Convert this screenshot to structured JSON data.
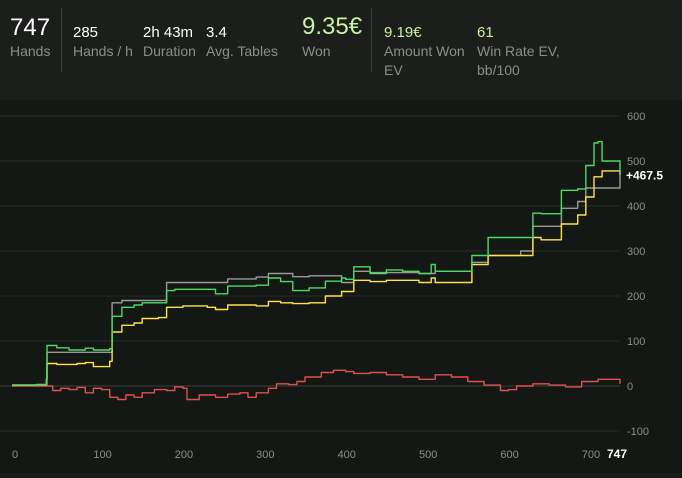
{
  "stats": {
    "hands": {
      "value": "747",
      "label": "Hands"
    },
    "hands_per_hour": {
      "value": "285",
      "label": "Hands / h"
    },
    "duration": {
      "value": "2h 43m",
      "label": "Duration"
    },
    "avg_tables": {
      "value": "3.4",
      "label": "Avg. Tables"
    },
    "won": {
      "value": "9.35€",
      "label": "Won"
    },
    "amount_won_ev": {
      "value": "9.19€",
      "label_line1": "Amount Won",
      "label_line2": "EV"
    },
    "win_rate_ev": {
      "value": "61",
      "label_line1": "Win Rate EV,",
      "label_line2": "bb/100"
    }
  },
  "colors": {
    "accent_green": "#c8f2a0",
    "series_green": "#4cd964",
    "series_yellow": "#ffe14d",
    "series_gray": "#9a9a9a",
    "series_red": "#e05050"
  },
  "chart_data": {
    "type": "line",
    "xlim": [
      0,
      747
    ],
    "ylim": [
      -100,
      600
    ],
    "x_ticks": [
      "0",
      "100",
      "200",
      "300",
      "400",
      "500",
      "600",
      "700"
    ],
    "y_ticks": [
      "600",
      "500",
      "400",
      "300",
      "200",
      "100",
      "0",
      "-100"
    ],
    "x_end_label": "747",
    "end_value_label": "+467.5",
    "grid": true,
    "series": [
      {
        "color_key": "series_green",
        "points": [
          [
            0,
            2
          ],
          [
            30,
            3
          ],
          [
            42,
            15
          ],
          [
            43,
            90
          ],
          [
            55,
            85
          ],
          [
            70,
            80
          ],
          [
            90,
            84
          ],
          [
            100,
            80
          ],
          [
            120,
            83
          ],
          [
            123,
            155
          ],
          [
            135,
            175
          ],
          [
            150,
            180
          ],
          [
            160,
            185
          ],
          [
            180,
            185
          ],
          [
            190,
            212
          ],
          [
            200,
            215
          ],
          [
            240,
            215
          ],
          [
            250,
            205
          ],
          [
            265,
            222
          ],
          [
            300,
            224
          ],
          [
            315,
            240
          ],
          [
            330,
            232
          ],
          [
            345,
            212
          ],
          [
            365,
            218
          ],
          [
            385,
            233
          ],
          [
            405,
            240
          ],
          [
            410,
            237
          ],
          [
            420,
            265
          ],
          [
            440,
            250
          ],
          [
            460,
            258
          ],
          [
            480,
            255
          ],
          [
            500,
            250
          ],
          [
            515,
            270
          ],
          [
            520,
            255
          ],
          [
            565,
            290
          ],
          [
            585,
            330
          ],
          [
            625,
            330
          ],
          [
            640,
            384
          ],
          [
            650,
            383
          ],
          [
            675,
            410
          ],
          [
            675,
            435
          ],
          [
            695,
            438
          ],
          [
            705,
            490
          ],
          [
            715,
            540
          ],
          [
            720,
            543
          ],
          [
            725,
            500
          ],
          [
            747,
            470
          ]
        ]
      },
      {
        "color_key": "series_yellow",
        "points": [
          [
            0,
            2
          ],
          [
            30,
            3
          ],
          [
            42,
            15
          ],
          [
            43,
            50
          ],
          [
            55,
            48
          ],
          [
            80,
            50
          ],
          [
            90,
            52
          ],
          [
            100,
            43
          ],
          [
            120,
            55
          ],
          [
            123,
            120
          ],
          [
            135,
            135
          ],
          [
            150,
            140
          ],
          [
            160,
            150
          ],
          [
            180,
            152
          ],
          [
            190,
            175
          ],
          [
            210,
            178
          ],
          [
            240,
            175
          ],
          [
            250,
            170
          ],
          [
            265,
            180
          ],
          [
            300,
            178
          ],
          [
            315,
            188
          ],
          [
            330,
            185
          ],
          [
            345,
            183
          ],
          [
            365,
            185
          ],
          [
            385,
            200
          ],
          [
            405,
            210
          ],
          [
            420,
            235
          ],
          [
            440,
            232
          ],
          [
            460,
            235
          ],
          [
            480,
            235
          ],
          [
            500,
            230
          ],
          [
            515,
            240
          ],
          [
            520,
            230
          ],
          [
            565,
            270
          ],
          [
            585,
            290
          ],
          [
            625,
            290
          ],
          [
            640,
            330
          ],
          [
            650,
            325
          ],
          [
            675,
            360
          ],
          [
            695,
            380
          ],
          [
            705,
            420
          ],
          [
            715,
            465
          ],
          [
            725,
            478
          ],
          [
            747,
            470
          ]
        ]
      },
      {
        "color_key": "series_gray",
        "points": [
          [
            0,
            2
          ],
          [
            42,
            2
          ],
          [
            43,
            75
          ],
          [
            100,
            75
          ],
          [
            123,
            185
          ],
          [
            135,
            190
          ],
          [
            190,
            230
          ],
          [
            250,
            230
          ],
          [
            265,
            238
          ],
          [
            300,
            242
          ],
          [
            315,
            250
          ],
          [
            345,
            243
          ],
          [
            365,
            245
          ],
          [
            405,
            230
          ],
          [
            420,
            255
          ],
          [
            440,
            252
          ],
          [
            500,
            250
          ],
          [
            520,
            255
          ],
          [
            565,
            275
          ],
          [
            585,
            290
          ],
          [
            625,
            300
          ],
          [
            640,
            355
          ],
          [
            675,
            395
          ],
          [
            695,
            410
          ],
          [
            705,
            440
          ],
          [
            747,
            480
          ]
        ]
      },
      {
        "color_key": "series_red",
        "points": [
          [
            0,
            0
          ],
          [
            40,
            0
          ],
          [
            50,
            -10
          ],
          [
            60,
            -5
          ],
          [
            70,
            -8
          ],
          [
            80,
            -3
          ],
          [
            90,
            -15
          ],
          [
            100,
            -5
          ],
          [
            110,
            -8
          ],
          [
            120,
            -25
          ],
          [
            130,
            -30
          ],
          [
            140,
            -20
          ],
          [
            150,
            -25
          ],
          [
            160,
            -15
          ],
          [
            175,
            -8
          ],
          [
            190,
            -10
          ],
          [
            200,
            -2
          ],
          [
            210,
            -5
          ],
          [
            215,
            -30
          ],
          [
            230,
            -20
          ],
          [
            250,
            -25
          ],
          [
            265,
            -18
          ],
          [
            280,
            -15
          ],
          [
            290,
            -25
          ],
          [
            300,
            -15
          ],
          [
            315,
            -5
          ],
          [
            325,
            5
          ],
          [
            340,
            3
          ],
          [
            350,
            10
          ],
          [
            360,
            20
          ],
          [
            380,
            30
          ],
          [
            395,
            35
          ],
          [
            410,
            32
          ],
          [
            420,
            28
          ],
          [
            440,
            30
          ],
          [
            460,
            25
          ],
          [
            480,
            20
          ],
          [
            500,
            15
          ],
          [
            520,
            25
          ],
          [
            540,
            20
          ],
          [
            560,
            10
          ],
          [
            580,
            2
          ],
          [
            600,
            -10
          ],
          [
            610,
            -8
          ],
          [
            620,
            0
          ],
          [
            640,
            5
          ],
          [
            660,
            2
          ],
          [
            680,
            -2
          ],
          [
            700,
            10
          ],
          [
            720,
            15
          ],
          [
            747,
            5
          ]
        ]
      }
    ]
  }
}
